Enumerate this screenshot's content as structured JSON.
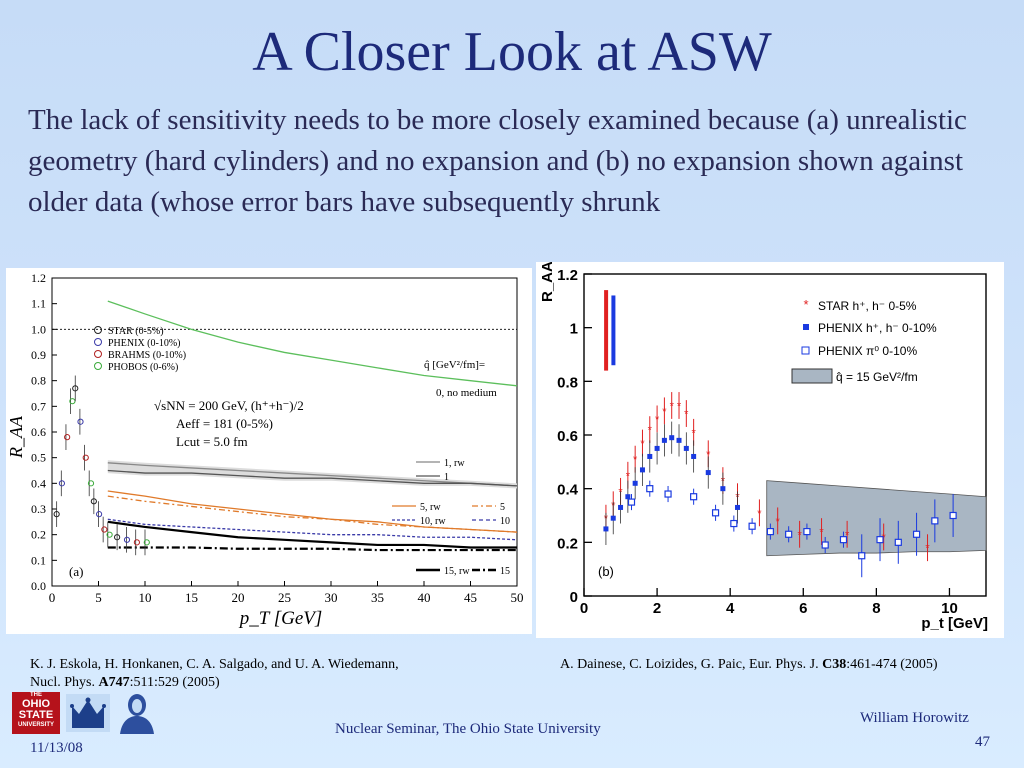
{
  "slide": {
    "title": "A Closer Look at ASW",
    "body": "The lack of sensitivity needs to be more closely examined because (a) unrealistic geometry (hard cylinders) and no expansion and (b) no expansion shown against older data (whose error bars have subsequently shrunk",
    "refA_line1": "K. J. Eskola, H. Honkanen, C. A. Salgado, and U. A. Wiedemann,",
    "refA_line2_prefix": "Nucl. Phys. ",
    "refA_bold": "A747",
    "refA_suffix": ":511:529 (2005)",
    "refB_prefix": "A. Dainese, C. Loizides, G. Paic, Eur. Phys. J. ",
    "refB_bold": "C38",
    "refB_suffix": ":461-474 (2005)",
    "footer_center": "Nuclear Seminar, The Ohio State University",
    "footer_date": "11/13/08",
    "footer_author": "William Horowitz",
    "footer_page": "47",
    "logo_osu_lines": [
      "THE",
      "OHIO",
      "STATE",
      "UNIVERSITY"
    ]
  },
  "chart_data": [
    {
      "type": "line",
      "panel_label": "(a)",
      "ylabel": "R_AA",
      "xlabel": "p_T [GeV]",
      "xlim": [
        0,
        50
      ],
      "ylim": [
        0,
        1.2
      ],
      "xticks": [
        0,
        5,
        10,
        15,
        20,
        25,
        30,
        35,
        40,
        45,
        50
      ],
      "yticks": [
        "0.0",
        "0.1",
        "0.2",
        "0.3",
        "0.4",
        "0.5",
        "0.6",
        "0.7",
        "0.8",
        "0.9",
        "1.0",
        "1.1",
        "1.2"
      ],
      "annotation_energy": "√sNN = 200 GeV, (h⁺+h⁻)/2",
      "annotation_aeff": "Aeff = 181 (0-5%)",
      "annotation_lcut": "Lcut = 5.0 fm",
      "annotation_qhat": "q̂ [GeV²/fm]=",
      "legend_data": [
        "STAR (0-5%)",
        "PHENIX (0-10%)",
        "BRAHMS (0-10%)",
        "PHOBOS (0-6%)"
      ],
      "legend_curves": [
        "1, rw",
        "1",
        "5, rw",
        "5",
        "10, rw",
        "10",
        "15, rw",
        "15"
      ],
      "no_medium_label": "0, no medium",
      "series": [
        {
          "name": "0, no medium",
          "color": "#5cbf5c",
          "dash": "",
          "x": [
            6,
            10,
            15,
            20,
            25,
            30,
            35,
            40,
            45,
            50
          ],
          "y": [
            1.11,
            1.06,
            1.0,
            0.95,
            0.91,
            0.88,
            0.85,
            0.82,
            0.8,
            0.78
          ]
        },
        {
          "name": "1, rw",
          "color": "#888888",
          "dash": "",
          "x": [
            6,
            10,
            15,
            20,
            25,
            30,
            35,
            40,
            45,
            50
          ],
          "y": [
            0.48,
            0.47,
            0.46,
            0.45,
            0.44,
            0.43,
            0.42,
            0.41,
            0.4,
            0.39
          ]
        },
        {
          "name": "1",
          "color": "#555555",
          "dash": "",
          "x": [
            6,
            10,
            15,
            20,
            25,
            30,
            35,
            40,
            45,
            50
          ],
          "y": [
            0.45,
            0.44,
            0.44,
            0.43,
            0.42,
            0.42,
            0.41,
            0.4,
            0.4,
            0.39
          ]
        },
        {
          "name": "5, rw",
          "color": "#e07a2a",
          "dash": "",
          "x": [
            6,
            10,
            15,
            20,
            25,
            30,
            35,
            40,
            45,
            50
          ],
          "y": [
            0.37,
            0.35,
            0.32,
            0.3,
            0.28,
            0.26,
            0.25,
            0.23,
            0.22,
            0.21
          ]
        },
        {
          "name": "5",
          "color": "#e07a2a",
          "dash": "6,3,2,3",
          "x": [
            6,
            10,
            15,
            20,
            25,
            30,
            35,
            40,
            45,
            50
          ],
          "y": [
            0.35,
            0.33,
            0.31,
            0.29,
            0.27,
            0.26,
            0.24,
            0.23,
            0.22,
            0.21
          ]
        },
        {
          "name": "10, rw",
          "color": "#3a3aa8",
          "dash": "3,2",
          "x": [
            6,
            10,
            15,
            20,
            25,
            30,
            35,
            40,
            45,
            50
          ],
          "y": [
            0.26,
            0.24,
            0.23,
            0.22,
            0.21,
            0.2,
            0.2,
            0.19,
            0.19,
            0.18
          ]
        },
        {
          "name": "15, rw",
          "color": "#000000",
          "dash": "",
          "x": [
            6,
            10,
            15,
            20,
            25,
            30,
            35,
            40,
            45,
            50
          ],
          "y": [
            0.25,
            0.23,
            0.21,
            0.19,
            0.18,
            0.17,
            0.16,
            0.16,
            0.15,
            0.15
          ]
        },
        {
          "name": "15",
          "color": "#000000",
          "dash": "8,3,2,3",
          "x": [
            6,
            10,
            15,
            20,
            25,
            30,
            35,
            40,
            45,
            50
          ],
          "y": [
            0.15,
            0.15,
            0.15,
            0.145,
            0.145,
            0.145,
            0.14,
            0.14,
            0.14,
            0.14
          ]
        }
      ],
      "data_points": {
        "x": [
          0.5,
          1,
          1.5,
          2,
          2.5,
          3,
          3.5,
          4,
          4.5,
          5,
          5.5,
          6,
          7,
          8,
          9,
          10
        ],
        "y": [
          0.28,
          0.4,
          0.58,
          0.72,
          0.77,
          0.64,
          0.5,
          0.4,
          0.33,
          0.28,
          0.22,
          0.2,
          0.19,
          0.18,
          0.17,
          0.17
        ]
      }
    },
    {
      "type": "scatter",
      "panel_label": "(b)",
      "ylabel": "R_AA",
      "xlabel": "p_t [GeV]",
      "xlim": [
        0,
        11
      ],
      "ylim": [
        0,
        1.2
      ],
      "xticks": [
        "0",
        "2",
        "4",
        "6",
        "8",
        "10"
      ],
      "yticks": [
        "0",
        "0.2",
        "0.4",
        "0.6",
        "0.8",
        "1",
        "1.2"
      ],
      "legend": [
        "STAR  h⁺, h⁻ 0-5%",
        "PHENIX  h⁺, h⁻ 0-10%",
        "PHENIX π⁰ 0-10%",
        "q̂ = 15 GeV²/fm"
      ],
      "star": {
        "color": "#e02020",
        "x": [
          0.6,
          0.8,
          1.0,
          1.2,
          1.4,
          1.6,
          1.8,
          2.0,
          2.2,
          2.4,
          2.6,
          2.8,
          3.0,
          3.4,
          3.8,
          4.2,
          4.8,
          5.3,
          5.9,
          6.5,
          7.2,
          8.2,
          9.4
        ],
        "y": [
          0.29,
          0.34,
          0.39,
          0.45,
          0.51,
          0.57,
          0.62,
          0.66,
          0.69,
          0.71,
          0.71,
          0.68,
          0.61,
          0.53,
          0.43,
          0.37,
          0.31,
          0.28,
          0.23,
          0.24,
          0.23,
          0.22,
          0.18
        ]
      },
      "phenix_h": {
        "color": "#1a3ae0",
        "x": [
          0.6,
          0.8,
          1.0,
          1.2,
          1.4,
          1.6,
          1.8,
          2.0,
          2.2,
          2.4,
          2.6,
          2.8,
          3.0,
          3.4,
          3.8,
          4.2
        ],
        "y": [
          0.25,
          0.29,
          0.33,
          0.37,
          0.42,
          0.47,
          0.52,
          0.55,
          0.58,
          0.59,
          0.58,
          0.55,
          0.52,
          0.46,
          0.4,
          0.33
        ]
      },
      "phenix_pi0": {
        "color": "#1a3ae0",
        "x": [
          1.3,
          1.8,
          2.3,
          3.0,
          3.6,
          4.1,
          4.6,
          5.1,
          5.6,
          6.1,
          6.6,
          7.1,
          7.6,
          8.1,
          8.6,
          9.1,
          9.6,
          10.1
        ],
        "y": [
          0.35,
          0.4,
          0.38,
          0.37,
          0.31,
          0.27,
          0.26,
          0.24,
          0.23,
          0.24,
          0.19,
          0.21,
          0.15,
          0.21,
          0.2,
          0.23,
          0.28,
          0.3
        ]
      },
      "band": {
        "label": "q̂ = 15 GeV²/fm",
        "color": "#a9b6c3",
        "x": [
          5,
          6,
          7,
          8,
          9,
          10,
          11
        ],
        "y_low": [
          0.15,
          0.155,
          0.16,
          0.16,
          0.165,
          0.165,
          0.17
        ],
        "y_high": [
          0.43,
          0.42,
          0.41,
          0.4,
          0.39,
          0.38,
          0.37
        ]
      }
    }
  ]
}
